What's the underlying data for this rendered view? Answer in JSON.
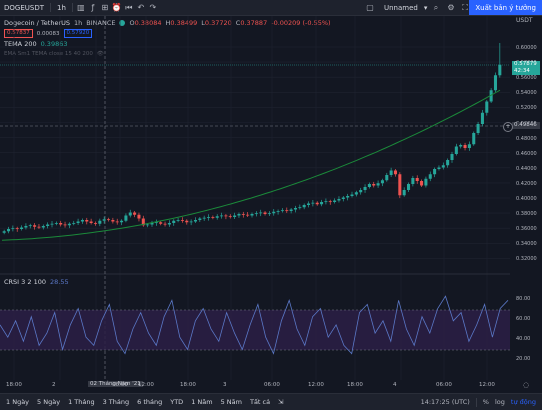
{
  "topbar": {
    "symbol": "DOGEUSDT",
    "interval": "1h",
    "layout_name": "Unnamed",
    "publish_label": "Xuất bản ý tưởng",
    "currency_label": "USDT"
  },
  "legend": {
    "title": "Dogecoin / TetherUS",
    "interval": "1h",
    "exchange": "BINANCE",
    "o": "0.38084",
    "h": "0.38499",
    "l": "0.37720",
    "c": "0.37887",
    "change": "-0.00209 (-0.55%)",
    "bid": "0.57837",
    "spread": "0.00083",
    "ask": "0.57920",
    "tema_label": "TEMA 200",
    "tema_value": "0.39863",
    "ema_label": "EMA Sm1 TEMA close 15 40 200",
    "rsi_label": "CRSI 3 2 100",
    "rsi_value": "28.55"
  },
  "price_axis": [
    "0.60000",
    "0.58000",
    "0.56000",
    "0.54000",
    "0.52000",
    "0.50000",
    "0.48000",
    "0.46000",
    "0.44000",
    "0.42000",
    "0.40000",
    "0.38000",
    "0.36000",
    "0.34000",
    "0.32000"
  ],
  "price_tags": {
    "last": "0.57879",
    "countdown": "42:34",
    "crosshair": "0.49846"
  },
  "rsi_axis": [
    "80.00",
    "60.00",
    "40.00",
    "20.00"
  ],
  "time_axis": [
    "18:00",
    "2",
    "02 Tháng Năm '21",
    "06:00",
    "12:00",
    "18:00",
    "3",
    "06:00",
    "12:00",
    "18:00",
    "4",
    "06:00",
    "12:00"
  ],
  "bottombar": {
    "ranges": [
      "1 Ngày",
      "5 Ngày",
      "1 Tháng",
      "3 Tháng",
      "6 tháng",
      "YTD",
      "1 Năm",
      "5 Năm",
      "Tất cả"
    ],
    "clock": "14:17:25 (UTC)",
    "percent": "%",
    "log": "log",
    "auto": "tự động"
  },
  "colors": {
    "up": "#26a69a",
    "down": "#ef5350",
    "tema": "#1b8a3a",
    "rsi_line": "#5b78c7",
    "rsi_band": "#3b2a5c",
    "accent": "#2962ff"
  }
}
